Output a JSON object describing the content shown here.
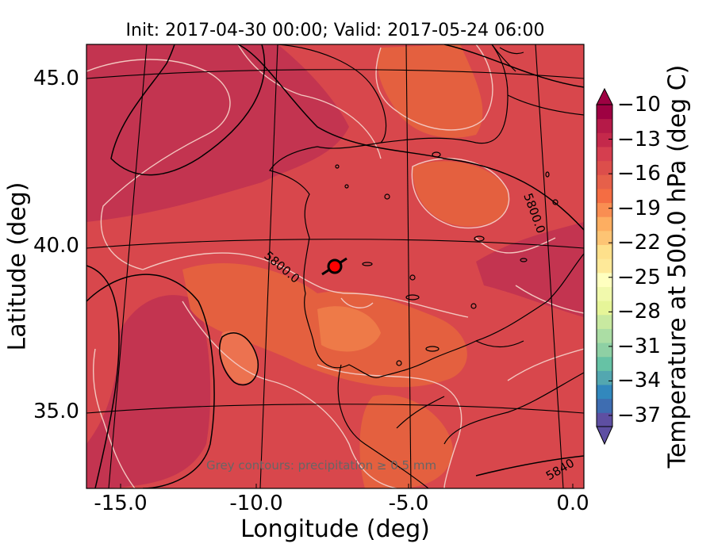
{
  "title": "Init: 2017-04-30 00:00; Valid: 2017-05-24 06:00",
  "x_axis": {
    "label": "Longitude (deg)",
    "ticks": [
      "-15.0",
      "-10.0",
      "-5.0",
      "0.0"
    ]
  },
  "y_axis": {
    "label": "Latitude (deg)",
    "ticks": [
      "45.0",
      "40.0",
      "35.0"
    ]
  },
  "colorbar": {
    "label": "Temperature at 500.0 hPa (deg C)",
    "ticks": [
      "−10",
      "−13",
      "−16",
      "−19",
      "−22",
      "−25",
      "−28",
      "−31",
      "−34",
      "−37"
    ],
    "colors": [
      "#5e4fa2",
      "#3e6db1",
      "#3288bd",
      "#53a7b0",
      "#66c2a5",
      "#8ed0a4",
      "#abdda4",
      "#c8e9a0",
      "#e6f598",
      "#f1f9ac",
      "#ffffbf",
      "#fee999",
      "#fee08b",
      "#fdc474",
      "#fdae61",
      "#f98e52",
      "#f46d43",
      "#e6604a",
      "#dc4e4b",
      "#d53e4f",
      "#c4294b",
      "#b51a48",
      "#9e0142"
    ]
  },
  "contour_labels": [
    "5800.0",
    "5800.0",
    "5840"
  ],
  "note": "Grey contours: precipitation ≥ 0.5 mm",
  "colors": {
    "field_base": "#d94e4a",
    "field_warm": "#e55f46",
    "field_cool": "#c5334c",
    "contour_grey": "#f2c9c1",
    "coast": "#000000",
    "marker": "#ff0000"
  }
}
